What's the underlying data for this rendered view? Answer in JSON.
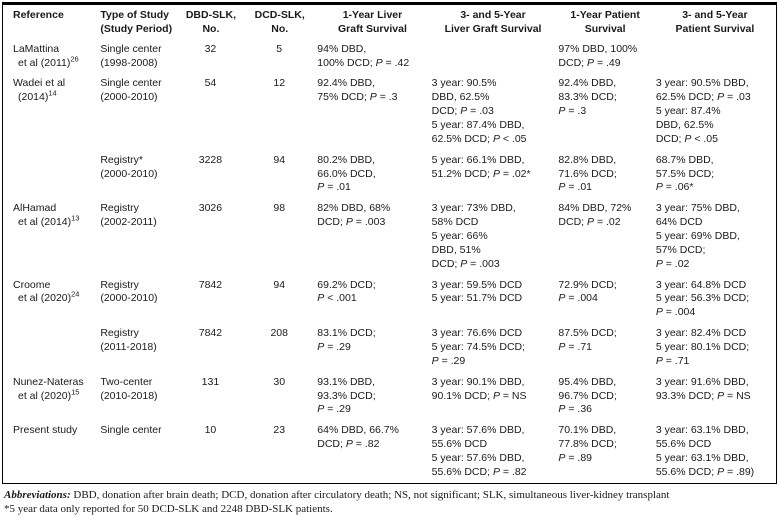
{
  "colors": {
    "text": "#1a1a1a",
    "border": "#000000",
    "background": "#ffffff"
  },
  "table": {
    "columns": [
      "Reference",
      "Type of Study\n(Study Period)",
      "DBD-SLK,\nNo.",
      "DCD-SLK,\nNo.",
      "1-Year Liver\nGraft Survival",
      "3- and 5-Year\nLiver Graft Survival",
      "1-Year Patient\nSurvival",
      "3- and 5-Year\nPatient Survival"
    ],
    "rows": [
      {
        "reference": {
          "line1": "LaMattina",
          "line2": "et al (2011)",
          "ref_number": "26"
        },
        "study_type": "Single center\n(1998-2008)",
        "dbd_slk_no": "32",
        "dcd_slk_no": "5",
        "liver_graft_1yr": "94% DBD,\n100% DCD; P = .42",
        "liver_graft_3_5yr": "",
        "patient_1yr": "97% DBD, 100%\nDCD; P = .49",
        "patient_3_5yr": ""
      },
      {
        "reference": {
          "line1": "Wadei et al",
          "line2": "(2014)",
          "ref_number": "14"
        },
        "study_type": "Single center\n(2000-2010)",
        "dbd_slk_no": "54",
        "dcd_slk_no": "12",
        "liver_graft_1yr": "92.4% DBD,\n75% DCD; P = .3",
        "liver_graft_3_5yr": "3 year: 90.5%\nDBD, 62.5%\nDCD; P = .03\n5 year: 87.4% DBD,\n62.5% DCD; P < .05",
        "patient_1yr": "92.4% DBD,\n83.3% DCD;\nP = .3",
        "patient_3_5yr": "3 year: 90.5% DBD,\n62.5% DCD; P = .03\n5 year: 87.4%\nDBD, 62.5%\nDCD; P < .05"
      },
      {
        "reference": {
          "line1": "",
          "line2": "",
          "ref_number": ""
        },
        "study_type": "Registry*\n(2000-2010)",
        "dbd_slk_no": "3228",
        "dcd_slk_no": "94",
        "liver_graft_1yr": "80.2% DBD,\n66.0% DCD,\nP = .01",
        "liver_graft_3_5yr": "5 year: 66.1% DBD,\n51.2% DCD; P = .02*",
        "patient_1yr": "82.8% DBD,\n71.6% DCD;\nP = .01",
        "patient_3_5yr": "68.7% DBD,\n57.5% DCD;\nP = .06*"
      },
      {
        "reference": {
          "line1": "AlHamad",
          "line2": "et al (2014)",
          "ref_number": "13"
        },
        "study_type": "Registry\n(2002-2011)",
        "dbd_slk_no": "3026",
        "dcd_slk_no": "98",
        "liver_graft_1yr": "82% DBD, 68%\nDCD; P = .003",
        "liver_graft_3_5yr": "3 year: 73% DBD,\n58% DCD\n5 year: 66%\nDBD, 51%\nDCD; P = .003",
        "patient_1yr": "84% DBD, 72%\nDCD; P = .02",
        "patient_3_5yr": "3 year: 75% DBD,\n64% DCD\n5 year: 69% DBD,\n57% DCD;\nP = .02"
      },
      {
        "reference": {
          "line1": "Croome",
          "line2": "et al (2020)",
          "ref_number": "24"
        },
        "study_type": "Registry\n(2000-2010)",
        "dbd_slk_no": "7842",
        "dcd_slk_no": "94",
        "liver_graft_1yr": "69.2% DCD;\nP < .001",
        "liver_graft_3_5yr": "3 year: 59.5% DCD\n5 year: 51.7% DCD",
        "patient_1yr": "72.9% DCD;\nP = .004",
        "patient_3_5yr": "3 year: 64.8% DCD\n5 year: 56.3% DCD;\nP = .004"
      },
      {
        "reference": {
          "line1": "",
          "line2": "",
          "ref_number": ""
        },
        "study_type": "Registry\n(2011-2018)",
        "dbd_slk_no": "7842",
        "dcd_slk_no": "208",
        "liver_graft_1yr": "83.1% DCD;\nP = .29",
        "liver_graft_3_5yr": "3 year: 76.6% DCD\n5 year: 74.5% DCD;\nP = .29",
        "patient_1yr": "87.5% DCD;\nP = .71",
        "patient_3_5yr": "3 year: 82.4% DCD\n5 year: 80.1% DCD;\nP = .71"
      },
      {
        "reference": {
          "line1": "Nunez-Nateras",
          "line2": "et al (2020)",
          "ref_number": "15"
        },
        "study_type": "Two-center\n(2010-2018)",
        "dbd_slk_no": "131",
        "dcd_slk_no": "30",
        "liver_graft_1yr": "93.1% DBD,\n93.3% DCD;\nP = .29",
        "liver_graft_3_5yr": "3 year: 90.1% DBD,\n90.1% DCD; P = NS",
        "patient_1yr": "95.4% DBD,\n96.7% DCD;\nP = .36",
        "patient_3_5yr": "3 year: 91.6% DBD,\n93.3% DCD; P = NS"
      },
      {
        "reference": {
          "line1": "Present study",
          "line2": "",
          "ref_number": ""
        },
        "study_type": "Single center",
        "dbd_slk_no": "10",
        "dcd_slk_no": "23",
        "liver_graft_1yr": "64% DBD, 66.7%\nDCD; P = .82",
        "liver_graft_3_5yr": "3 year: 57.6% DBD,\n55.6% DCD\n5 year: 57.6% DBD,\n55.6% DCD; P = .82",
        "patient_1yr": "70.1% DBD,\n77.8% DCD;\nP = .89",
        "patient_3_5yr": "3 year: 63.1% DBD,\n55.6% DCD\n5 year: 63.1% DBD,\n55.6% DCD; P = .89)"
      }
    ]
  },
  "footnotes": {
    "abbreviations_label": "Abbreviations:",
    "abbreviations_text": " DBD, donation after brain death; DCD, donation after circulatory death; NS, not significant; SLK, simultaneous liver-kidney transplant",
    "asterisk_note": "*5 year data only reported for 50 DCD-SLK and 2248 DBD-SLK patients."
  }
}
